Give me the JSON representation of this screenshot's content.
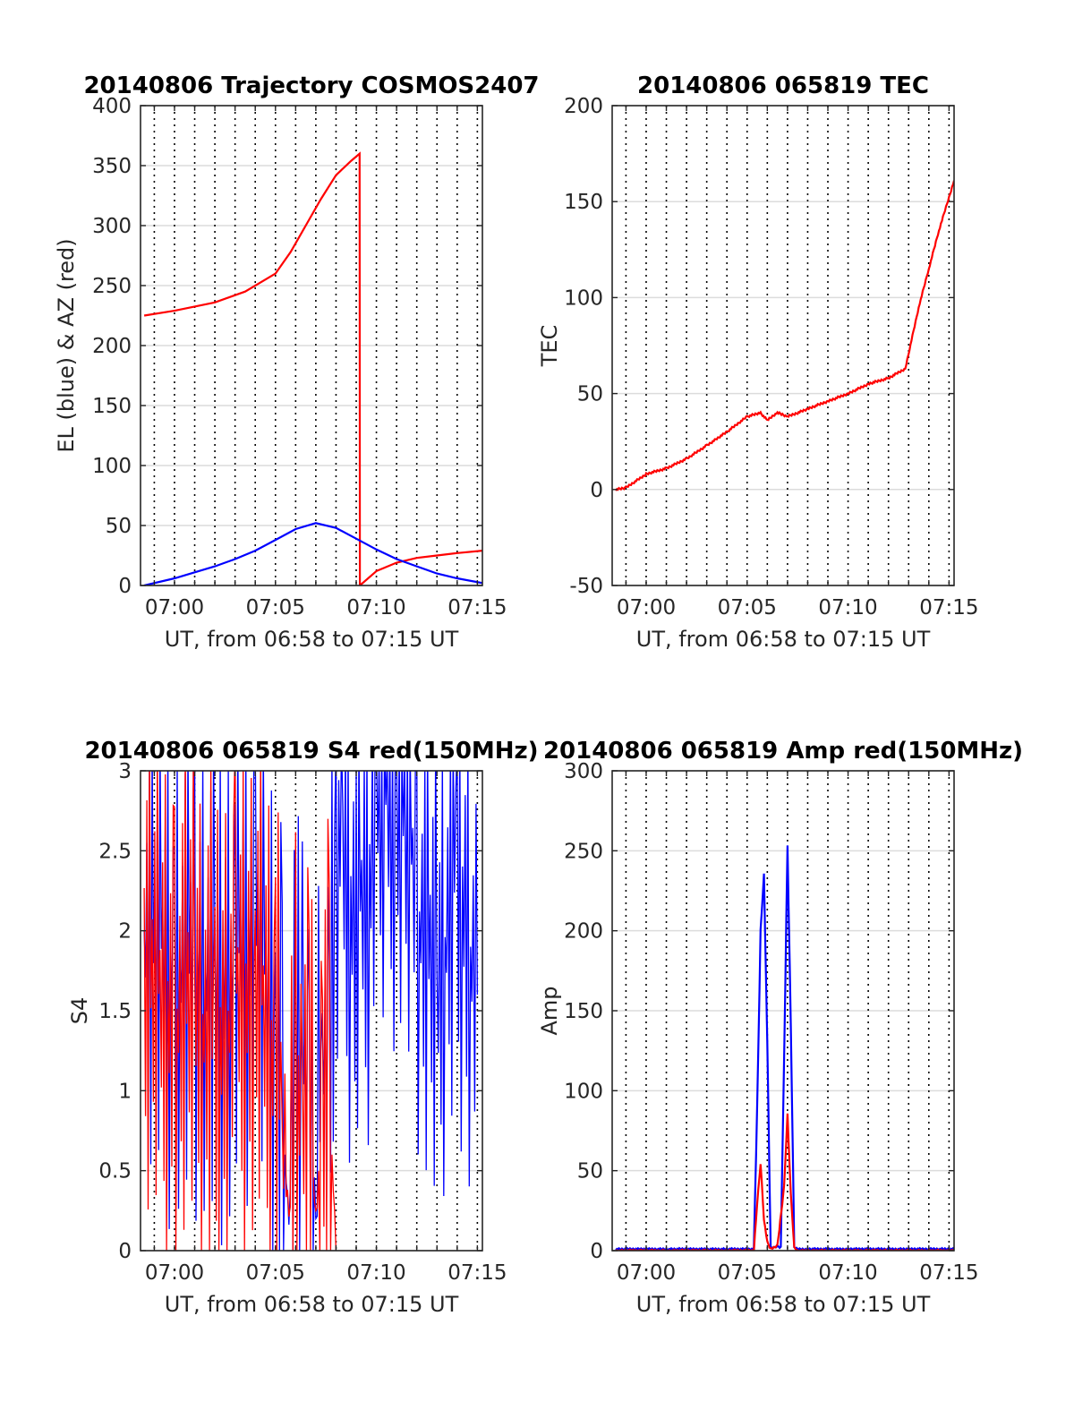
{
  "colors": {
    "el": "#0000ff",
    "az": "#ff0000",
    "tec": "#ff0000",
    "s4_red": "#ff0000",
    "s4_blue": "#0000ff",
    "amp_blue": "#0000ff",
    "amp_red": "#ff0000",
    "grid_h": "#dcdcdc",
    "grid_v": "#000000",
    "axes": "#262626"
  },
  "chart_data": [
    {
      "type": "line",
      "title": "20140806 Trajectory COSMOS2407",
      "xlabel": "UT, from 06:58 to 07:15 UT",
      "ylabel": "EL (blue) & AZ (red)",
      "xlim": [
        "06:58:19",
        "07:15:15"
      ],
      "ylim": [
        0,
        400
      ],
      "xticks": [
        "07:00",
        "07:05",
        "07:10",
        "07:15"
      ],
      "yticks": [
        "0",
        "50",
        "100",
        "150",
        "200",
        "250",
        "300",
        "350",
        "400"
      ],
      "grid": "on",
      "series": [
        {
          "color": "red",
          "x": [
            "06:58:30",
            "07:00:00",
            "07:02:00",
            "07:03:30",
            "07:05:00",
            "07:05:45",
            "07:06:30",
            "07:07:15",
            "07:08:00",
            "07:08:45",
            "07:09:10",
            "07:09:11",
            "07:10:00",
            "07:11:00",
            "07:12:00",
            "07:13:00",
            "07:14:00",
            "07:15:15"
          ],
          "values": [
            225,
            229,
            236,
            245,
            260,
            278,
            300,
            322,
            342,
            354,
            360,
            0,
            12,
            19,
            23,
            25,
            27,
            29
          ]
        },
        {
          "color": "blue",
          "x": [
            "06:58:30",
            "07:00:00",
            "07:01:00",
            "07:02:00",
            "07:03:00",
            "07:04:00",
            "07:05:00",
            "07:06:00",
            "07:07:00",
            "07:08:00",
            "07:09:00",
            "07:10:00",
            "07:11:00",
            "07:12:00",
            "07:13:00",
            "07:14:00",
            "07:15:15"
          ],
          "values": [
            0,
            6,
            11,
            16,
            22,
            29,
            38,
            47,
            52,
            48,
            39,
            30,
            22,
            16,
            10,
            6,
            2
          ]
        }
      ]
    },
    {
      "type": "line",
      "title": "20140806 065819 TEC",
      "xlabel": "UT, from 06:58 to 07:15 UT",
      "ylabel": "TEC",
      "xlim": [
        "06:58:19",
        "07:15:15"
      ],
      "ylim": [
        -50,
        200
      ],
      "xticks": [
        "07:00",
        "07:05",
        "07:10",
        "07:15"
      ],
      "yticks": [
        "-50",
        "0",
        "50",
        "100",
        "150",
        "200"
      ],
      "grid": "on",
      "series": [
        {
          "color": "red",
          "x": [
            "06:58:30",
            "06:59:00",
            "07:00:00",
            "07:01:00",
            "07:02:00",
            "07:03:00",
            "07:04:00",
            "07:05:00",
            "07:05:40",
            "07:06:00",
            "07:06:30",
            "07:07:00",
            "07:08:00",
            "07:09:00",
            "07:10:00",
            "07:11:00",
            "07:12:00",
            "07:12:50",
            "07:13:30",
            "07:14:00",
            "07:14:30",
            "07:15:15"
          ],
          "values": [
            0,
            1,
            8,
            11,
            16,
            23,
            30,
            38,
            40,
            36,
            40,
            38,
            42,
            46,
            50,
            55,
            58,
            63,
            95,
            115,
            135,
            161
          ]
        }
      ]
    },
    {
      "type": "line",
      "title": "20140806 065819 S4 red(150MHz)",
      "xlabel": "UT, from 06:58 to 07:15 UT",
      "ylabel": "S4",
      "xlim": [
        "06:58:19",
        "07:15:15"
      ],
      "ylim": [
        0,
        3
      ],
      "xticks": [
        "07:00",
        "07:05",
        "07:10",
        "07:15"
      ],
      "yticks": [
        "0",
        "0.5",
        "1",
        "1.5",
        "2",
        "2.5",
        "3"
      ],
      "grid": "on",
      "series": [
        {
          "color": "blue",
          "x": [
            "06:58:30",
            "07:00:00",
            "07:01:00",
            "07:02:00",
            "07:03:00",
            "07:04:00",
            "07:05:00",
            "07:05:20",
            "07:05:40",
            "07:06:00",
            "07:06:20",
            "07:06:40",
            "07:07:00",
            "07:07:20",
            "07:07:40",
            "07:08:00",
            "07:08:20",
            "07:09:00",
            "07:10:00",
            "07:11:00",
            "07:12:00",
            "07:13:00",
            "07:14:00",
            "07:15:00"
          ],
          "values": [
            2.0,
            1.8,
            1.9,
            1.7,
            1.8,
            2.1,
            1.3,
            0.9,
            0.15,
            1.5,
            1.0,
            1.2,
            0.1,
            1.3,
            1.1,
            3.0,
            2.5,
            2.0,
            2.6,
            3.0,
            2.2,
            1.6,
            2.5,
            1.6
          ]
        },
        {
          "color": "red",
          "x": [
            "06:58:30",
            "07:00:00",
            "07:01:00",
            "07:02:00",
            "07:03:00",
            "07:04:00",
            "07:05:00",
            "07:05:20",
            "07:05:40",
            "07:06:00",
            "07:06:20",
            "07:06:40",
            "07:07:00",
            "07:07:20",
            "07:07:40",
            "07:08:00"
          ],
          "values": [
            1.7,
            1.5,
            1.6,
            1.3,
            1.6,
            1.7,
            1.2,
            0.8,
            0.15,
            1.2,
            0.9,
            1.0,
            0.1,
            1.0,
            1.0,
            0.0
          ]
        }
      ]
    },
    {
      "type": "line",
      "title": "20140806 065819 Amp red(150MHz)",
      "xlabel": "UT, from 06:58 to 07:15 UT",
      "ylabel": "Amp",
      "xlim": [
        "06:58:19",
        "07:15:15"
      ],
      "ylim": [
        0,
        300
      ],
      "xticks": [
        "07:00",
        "07:05",
        "07:10",
        "07:15"
      ],
      "yticks": [
        "0",
        "50",
        "100",
        "150",
        "200",
        "250",
        "300"
      ],
      "grid": "on",
      "series": [
        {
          "color": "blue",
          "x": [
            "06:58:30",
            "07:05:20",
            "07:05:30",
            "07:05:40",
            "07:05:50",
            "07:06:00",
            "07:06:10",
            "07:06:20",
            "07:06:30",
            "07:06:40",
            "07:06:50",
            "07:07:00",
            "07:07:10",
            "07:07:20",
            "07:07:30",
            "07:08:00",
            "07:15:15"
          ],
          "values": [
            1,
            1,
            90,
            200,
            235,
            130,
            2,
            2,
            3,
            2,
            120,
            253,
            140,
            2,
            1,
            1,
            1
          ]
        },
        {
          "color": "red",
          "x": [
            "06:58:30",
            "07:05:20",
            "07:05:30",
            "07:05:40",
            "07:05:50",
            "07:06:00",
            "07:06:10",
            "07:06:30",
            "07:06:50",
            "07:07:00",
            "07:07:10",
            "07:07:20",
            "07:07:30",
            "07:15:15"
          ],
          "values": [
            0,
            0,
            30,
            55,
            20,
            5,
            1,
            3,
            40,
            85,
            35,
            2,
            0,
            0
          ]
        }
      ]
    }
  ]
}
